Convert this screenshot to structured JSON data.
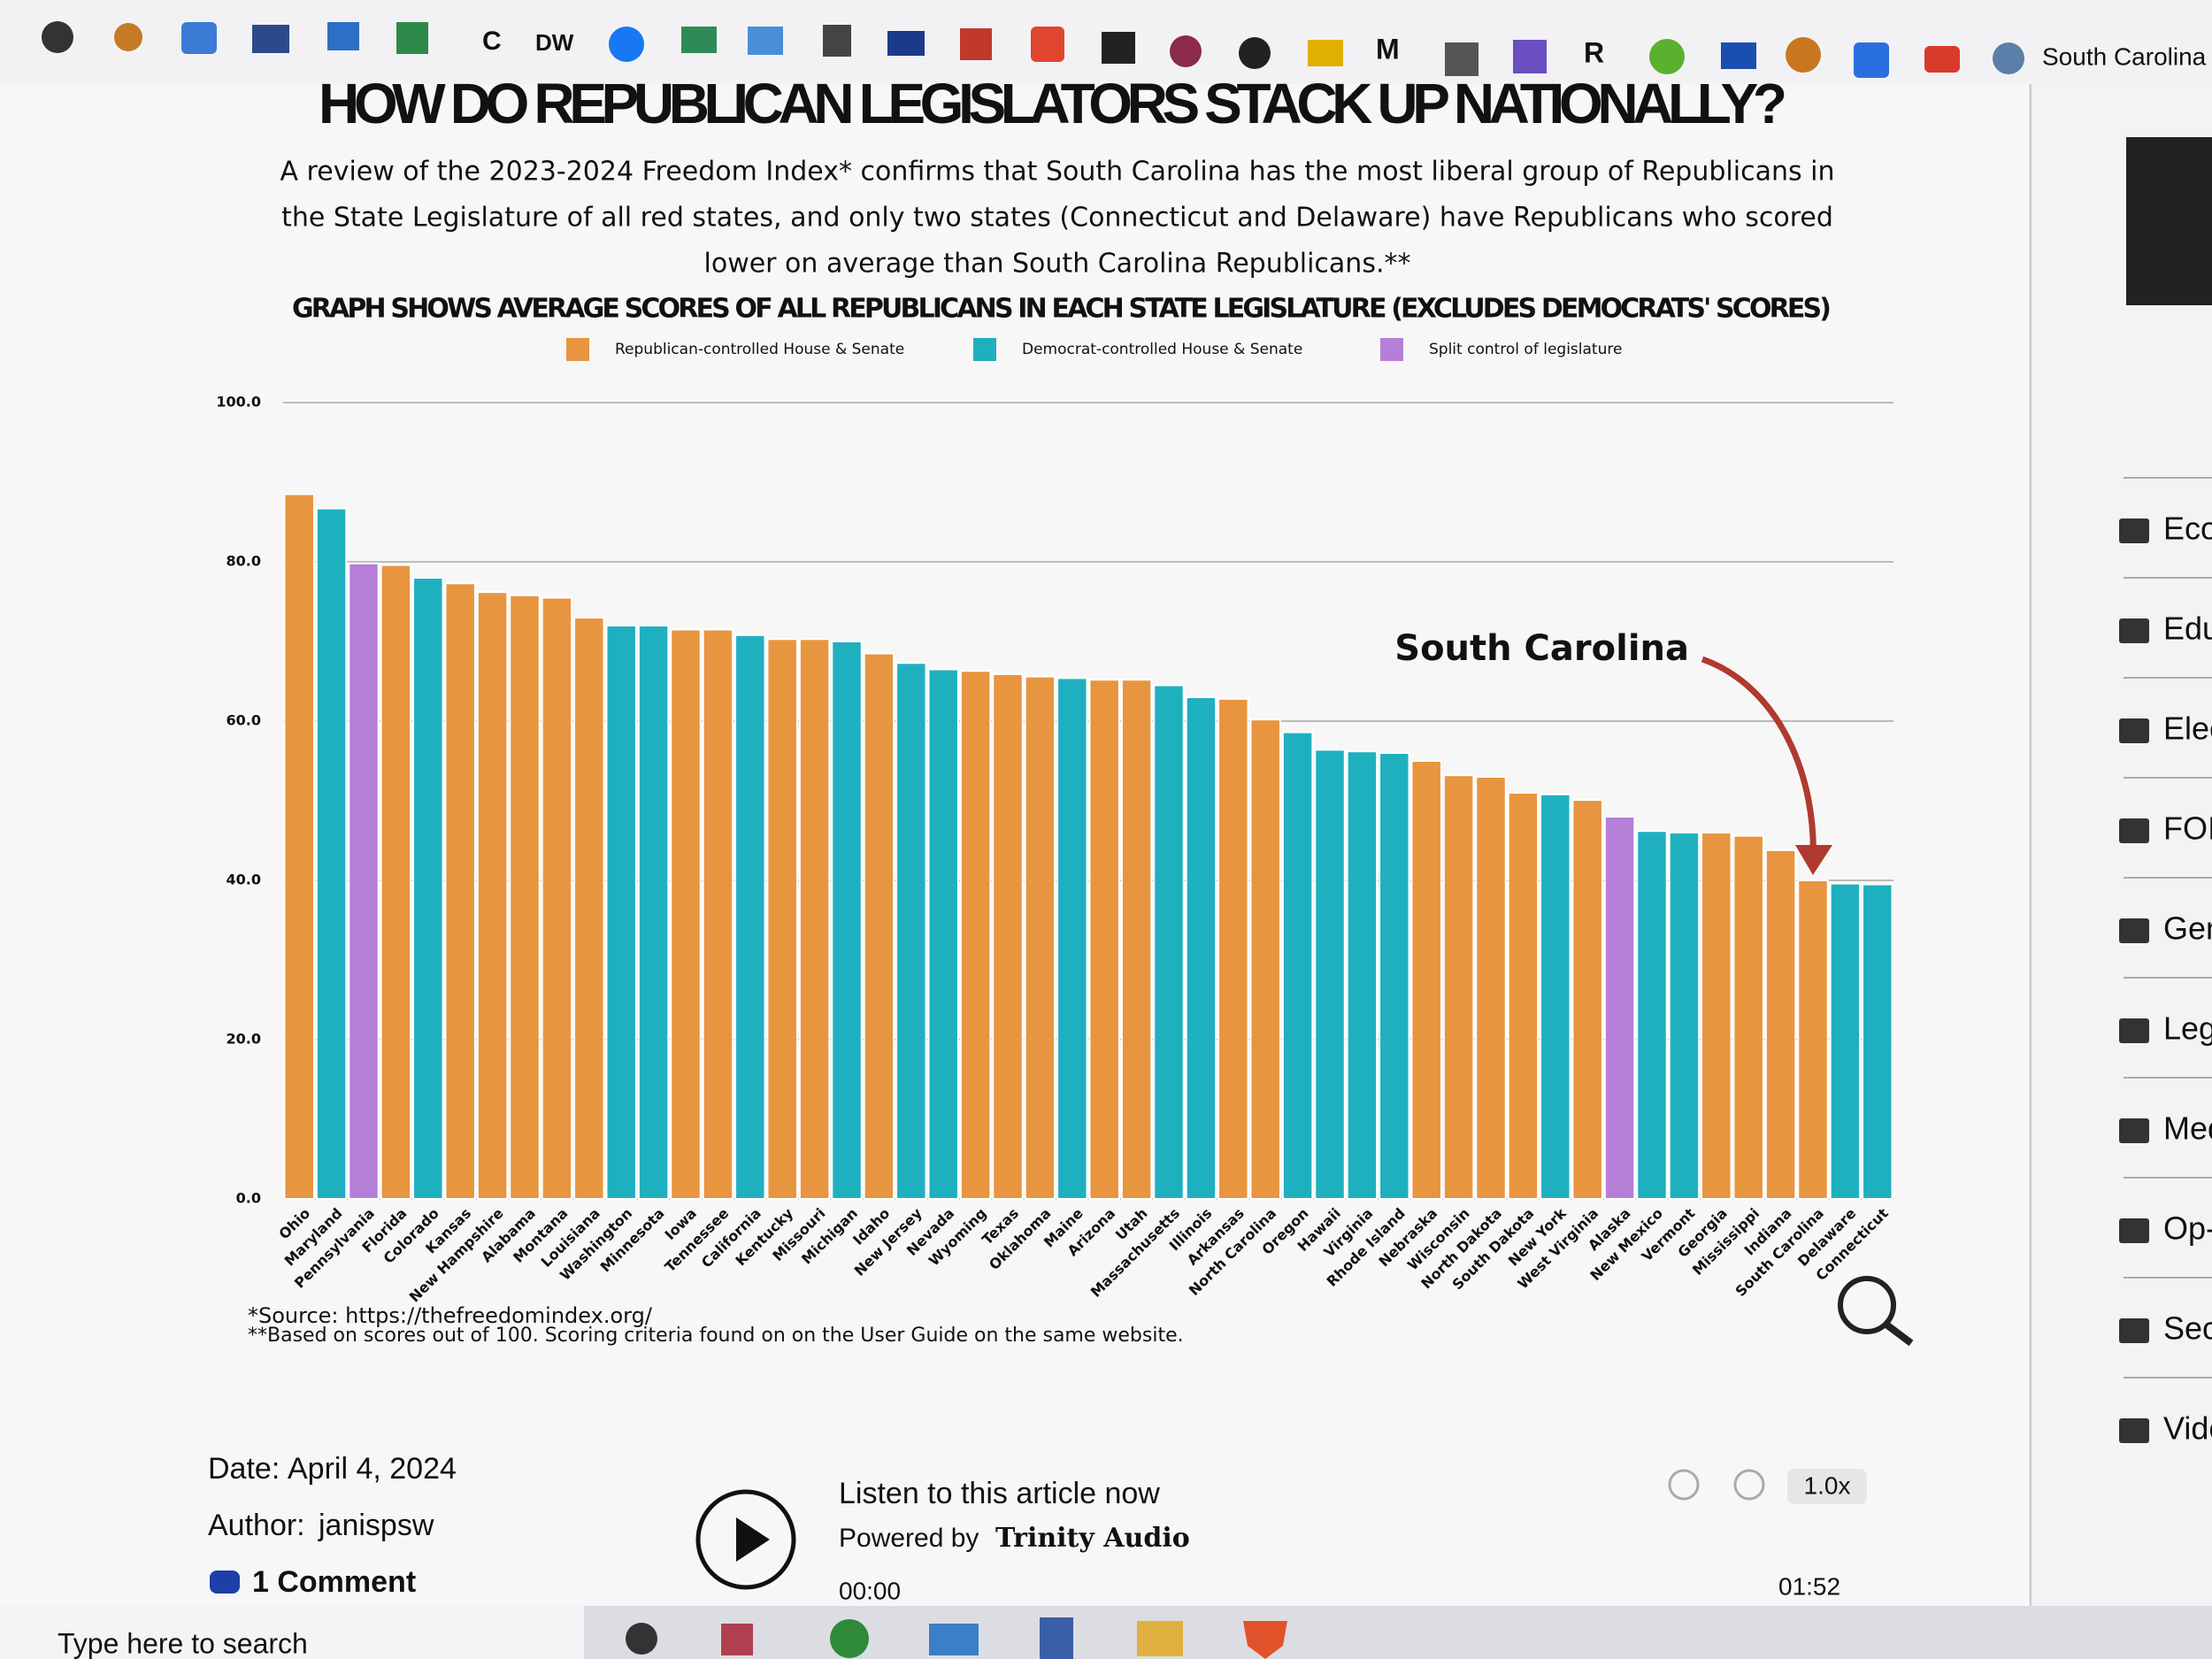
{
  "browser": {
    "bookmarks": [
      "C",
      "DW",
      "M",
      "R",
      "South Carolina"
    ]
  },
  "article": {
    "title": "HOW DO REPUBLICAN LEGISLATORS STACK UP NATIONALLY?",
    "intro": [
      "A review of the 2023-2024 Freedom Index* confirms that South Carolina has the most liberal group of Republicans in",
      "the State Legislature of all red states, and only two states (Connecticut and Delaware) have Republicans who scored",
      "lower on average than South Carolina Republicans.**"
    ],
    "notes": [
      "*Source: https://thefreedomindex.org/",
      "**Based on scores out of 100. Scoring criteria found on on the User Guide on the same website."
    ]
  },
  "meta": {
    "date_label": "Date:",
    "date": "April 4, 2024",
    "author_label": "Author:",
    "author": "janispsw",
    "comments": "1 Comment"
  },
  "audio": {
    "heading": "Listen to this article now",
    "powered_by": "Powered by",
    "provider": "Trinity Audio",
    "start": "00:00",
    "end": "01:52",
    "speed": "1.0x"
  },
  "sidebar": [
    "Eco",
    "Edu",
    "Elec",
    "FOIA",
    "Gen",
    "Legi",
    "Med",
    "Op-E",
    "Seco",
    "Vide"
  ],
  "taskbar": {
    "search": "Type here to search"
  },
  "chart_data": {
    "type": "bar",
    "title": "GRAPH SHOWS AVERAGE SCORES OF ALL REPUBLICANS IN EACH STATE LEGISLATURE (EXCLUDES DEMOCRATS' SCORES)",
    "legend": [
      {
        "label": "Republican-controlled House & Senate",
        "color": "#e8953f"
      },
      {
        "label": "Democrat-controlled House & Senate",
        "color": "#1fb0c0"
      },
      {
        "label": "Split control of legislature",
        "color": "#b57fd8"
      }
    ],
    "categories": [
      "Ohio",
      "Maryland",
      "Pennsylvania",
      "Florida",
      "Colorado",
      "Kansas",
      "New Hampshire",
      "Alabama",
      "Montana",
      "Louisiana",
      "Washington",
      "Minnesota",
      "Iowa",
      "Tennessee",
      "California",
      "Kentucky",
      "Missouri",
      "Michigan",
      "Idaho",
      "New Jersey",
      "Nevada",
      "Wyoming",
      "Texas",
      "Oklahoma",
      "Maine",
      "Arizona",
      "Utah",
      "Massachusetts",
      "Illinois",
      "Arkansas",
      "North Carolina",
      "Oregon",
      "Hawaii",
      "Virginia",
      "Rhode Island",
      "Nebraska",
      "Wisconsin",
      "North Dakota",
      "South Dakota",
      "New York",
      "West Virginia",
      "Alaska",
      "New Mexico",
      "Vermont",
      "Georgia",
      "Mississippi",
      "Indiana",
      "South Carolina",
      "Delaware",
      "Connecticut"
    ],
    "values": [
      88.5,
      86.7,
      79.8,
      79.6,
      78.0,
      77.3,
      76.2,
      75.8,
      75.5,
      73.0,
      72.0,
      72.0,
      71.5,
      71.5,
      70.8,
      70.3,
      70.3,
      70.0,
      68.5,
      67.3,
      66.5,
      66.3,
      65.9,
      65.6,
      65.4,
      65.2,
      65.2,
      64.5,
      63.0,
      62.8,
      60.2,
      58.6,
      56.4,
      56.2,
      56.0,
      55.0,
      53.2,
      53.0,
      51.0,
      50.8,
      50.1,
      48.0,
      46.2,
      46.0,
      46.0,
      45.6,
      43.8,
      40.0,
      39.6,
      39.5
    ],
    "colors": [
      "#e8953f",
      "#1fb0c0",
      "#b57fd8",
      "#e8953f",
      "#1fb0c0",
      "#e8953f",
      "#e8953f",
      "#e8953f",
      "#e8953f",
      "#e8953f",
      "#1fb0c0",
      "#1fb0c0",
      "#e8953f",
      "#e8953f",
      "#1fb0c0",
      "#e8953f",
      "#e8953f",
      "#1fb0c0",
      "#e8953f",
      "#1fb0c0",
      "#1fb0c0",
      "#e8953f",
      "#e8953f",
      "#e8953f",
      "#1fb0c0",
      "#e8953f",
      "#e8953f",
      "#1fb0c0",
      "#1fb0c0",
      "#e8953f",
      "#e8953f",
      "#1fb0c0",
      "#1fb0c0",
      "#1fb0c0",
      "#1fb0c0",
      "#e8953f",
      "#e8953f",
      "#e8953f",
      "#e8953f",
      "#1fb0c0",
      "#e8953f",
      "#b57fd8",
      "#1fb0c0",
      "#1fb0c0",
      "#e8953f",
      "#e8953f",
      "#e8953f",
      "#e8953f",
      "#1fb0c0",
      "#1fb0c0"
    ],
    "ylim": [
      0,
      100
    ],
    "yticks": [
      {
        "value": 0,
        "label": "0.0"
      },
      {
        "value": 20,
        "label": "20.0"
      },
      {
        "value": 40,
        "label": "40.0"
      },
      {
        "value": 60,
        "label": "60.0"
      },
      {
        "value": 80,
        "label": "80.0"
      },
      {
        "value": 100,
        "label": "100.0"
      }
    ],
    "grid": true,
    "annotation": {
      "text": "South Carolina",
      "color": "#b03a2e"
    }
  }
}
